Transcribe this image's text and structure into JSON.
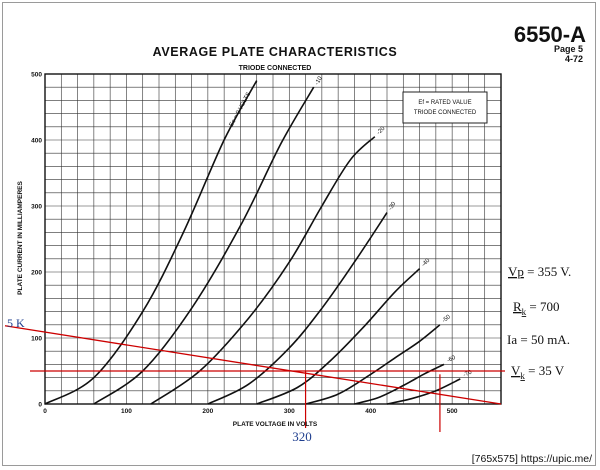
{
  "header": {
    "tube": "6550-A",
    "page": "Page  5",
    "date": "4-72"
  },
  "chart_data": {
    "type": "line",
    "title": "AVERAGE PLATE CHARACTERISTICS",
    "subtitle": "TRIODE CONNECTED",
    "xlabel": "PLATE VOLTAGE IN VOLTS",
    "ylabel": "PLATE CURRENT IN MILLIAMPERES",
    "xlim": [
      0,
      560
    ],
    "ylim": [
      0,
      500
    ],
    "x_ticks": [
      "0",
      "100",
      "200",
      "300",
      "400",
      "500"
    ],
    "y_ticks": [
      "0",
      "100",
      "200",
      "300",
      "400",
      "500"
    ],
    "grid": true,
    "legend_box": [
      "Ef = RATED VALUE",
      "TRIODE CONNECTED"
    ],
    "legend_position": "top-right",
    "series": [
      {
        "name": "Ec = 0 VOLTS",
        "x": [
          0,
          60,
          120,
          170,
          220,
          260
        ],
        "y": [
          0,
          40,
          140,
          260,
          400,
          490
        ]
      },
      {
        "name": "-10",
        "x": [
          60,
          120,
          180,
          240,
          290,
          330
        ],
        "y": [
          0,
          50,
          145,
          270,
          395,
          480
        ]
      },
      {
        "name": "-20",
        "x": [
          130,
          190,
          250,
          300,
          340,
          375,
          405
        ],
        "y": [
          0,
          50,
          130,
          215,
          300,
          370,
          405
        ]
      },
      {
        "name": "-30",
        "x": [
          200,
          250,
          300,
          340,
          380,
          420
        ],
        "y": [
          0,
          30,
          85,
          145,
          215,
          290
        ]
      },
      {
        "name": "-40",
        "x": [
          260,
          310,
          350,
          390,
          430,
          460
        ],
        "y": [
          0,
          25,
          65,
          115,
          170,
          205
        ]
      },
      {
        "name": "-50",
        "x": [
          320,
          360,
          400,
          430,
          460,
          485
        ],
        "y": [
          0,
          15,
          45,
          70,
          95,
          120
        ]
      },
      {
        "name": "-60",
        "x": [
          380,
          410,
          440,
          465,
          490
        ],
        "y": [
          0,
          10,
          28,
          45,
          60
        ]
      },
      {
        "name": "-70",
        "x": [
          420,
          450,
          480,
          510
        ],
        "y": [
          0,
          8,
          20,
          38
        ]
      }
    ],
    "load_line": {
      "x": [
        0,
        560
      ],
      "y": [
        117,
        0
      ],
      "color": "#cc0000"
    },
    "bias_line": {
      "y": 50,
      "x": [
        0,
        560
      ],
      "color": "#cc0000"
    },
    "markers": [
      {
        "x": 320,
        "label": "320",
        "color": "#cc0000"
      },
      {
        "x": 485,
        "label": "",
        "color": "#cc0000"
      }
    ],
    "annotations": {
      "load_start": "5 K",
      "vp_label": "Vp",
      "vp_value": " = 355 V.",
      "rk_label": "R",
      "rk_sub": "k",
      "rk_value": " = 700",
      "ia_label": "Ia",
      "ia_value": " = 50 mA.",
      "vk_label": "V",
      "vk_sub": "k",
      "vk_value": " = 35 V"
    }
  },
  "watermark": "[765x575] https://upic.me/"
}
